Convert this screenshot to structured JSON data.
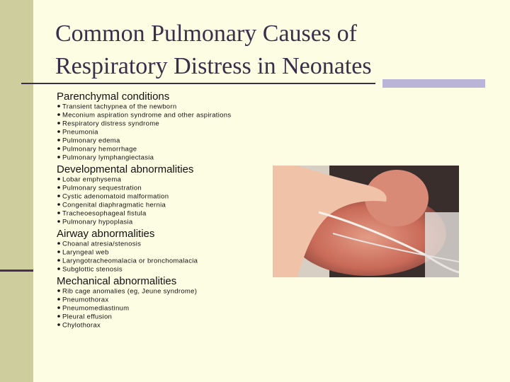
{
  "title": {
    "lines": [
      "Common Pulmonary Causes of",
      "Respiratory Distress in Neonates"
    ]
  },
  "sections": [
    {
      "heading": "Parenchymal conditions",
      "items": [
        "Transient tachypnea of the newborn",
        "Meconium aspiration syndrome and other aspirations",
        "Respiratory distress syndrome",
        "Pneumonia",
        "Pulmonary edema",
        "Pulmonary hemorrhage",
        "Pulmonary lymphangiectasia"
      ]
    },
    {
      "heading": "Developmental abnormalities",
      "items": [
        "Lobar emphysema",
        "Pulmonary sequestration",
        "Cystic adenomatoid malformation",
        "Congenital diaphragmatic hernia",
        "Tracheoesophageal fistula",
        "Pulmonary hypoplasia"
      ]
    },
    {
      "heading": "Airway abnormalities",
      "items": [
        "Choanal atresia/stenosis",
        "Laryngeal web",
        "Laryngotracheomalacia or bronchomalacia",
        "Subglottic stenosis"
      ]
    },
    {
      "heading": "Mechanical abnormalities",
      "items": [
        "Rib cage anomalies (eg, Jeune syndrome)",
        "Pneumothorax",
        "Pneumomediastinum",
        "Pleural effusion",
        "Chylothorax"
      ]
    }
  ]
}
